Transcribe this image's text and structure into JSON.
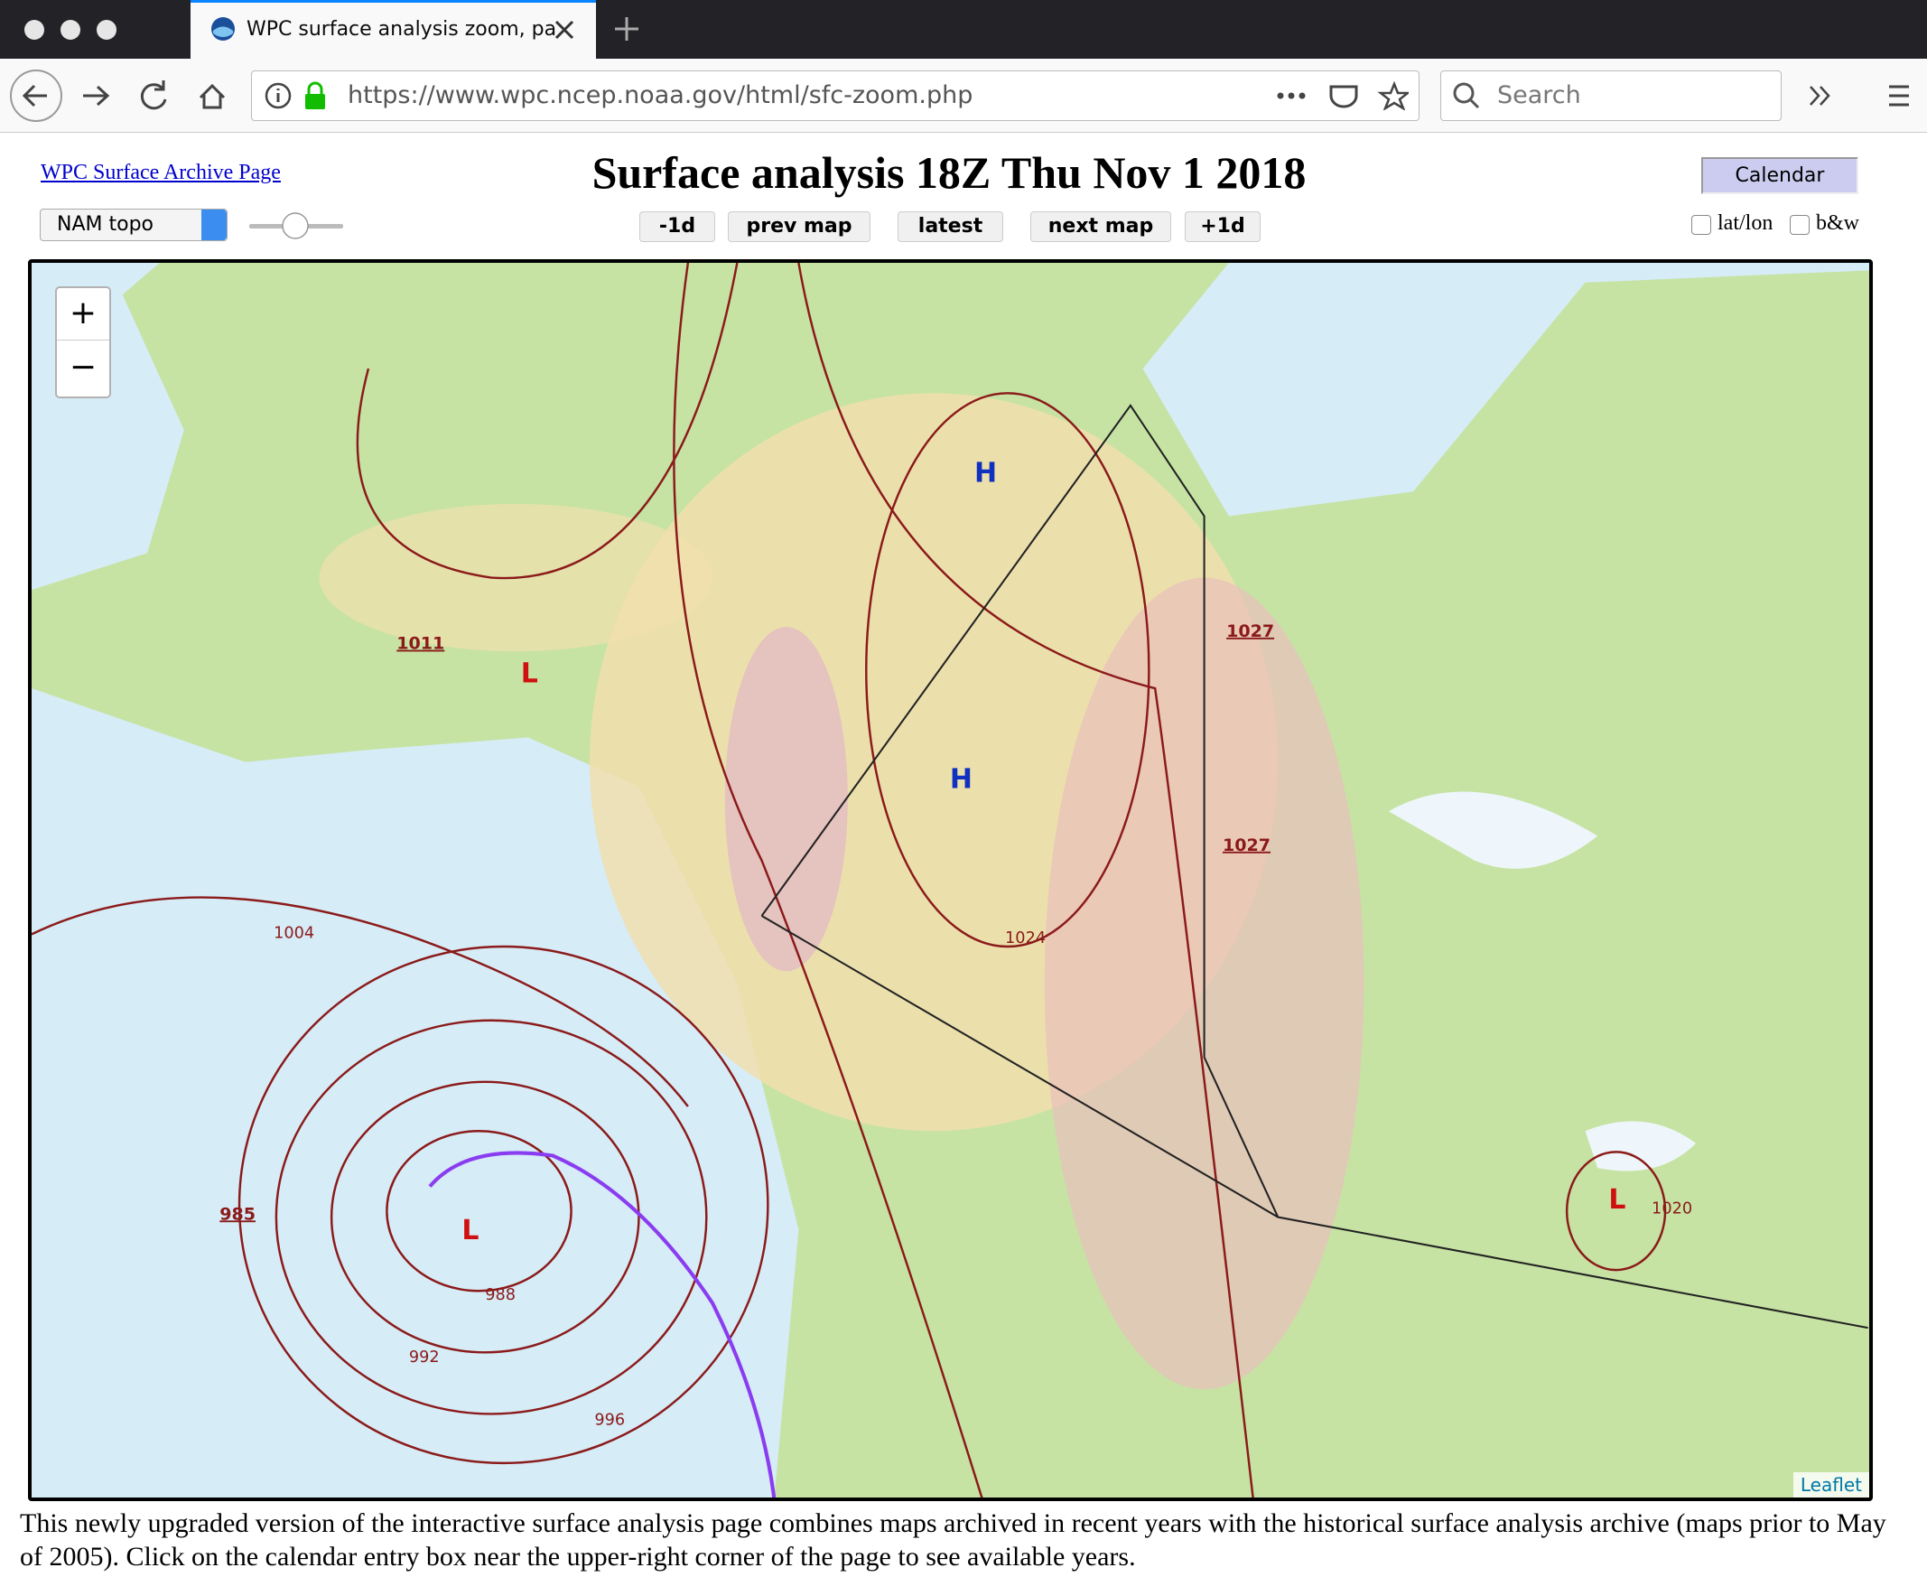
{
  "browser": {
    "tab_title": "WPC surface analysis zoom, pa",
    "url": "https://www.wpc.ncep.noaa.gov/html/sfc-zoom.php",
    "search_placeholder": "Search"
  },
  "header": {
    "archive_link": "WPC Surface Archive Page",
    "title": "Surface analysis 18Z Thu Nov 1 2018",
    "calendar": "Calendar"
  },
  "controls": {
    "map_select": "NAM topo",
    "buttons": [
      "-1d",
      "prev map",
      "latest",
      "next map",
      "+1d"
    ],
    "checkboxes": [
      "lat/lon",
      "b&w"
    ]
  },
  "map": {
    "zoom_in": "+",
    "zoom_out": "−",
    "attribution": "Leaflet",
    "centers": [
      "H",
      "H",
      "L",
      "L",
      "L"
    ],
    "isobars": [
      "1027",
      "1027",
      "1011",
      "1004",
      "985",
      "988",
      "992",
      "996",
      "1024",
      "1020"
    ]
  },
  "caption": "This newly upgraded version of the interactive surface analysis page combines maps archived in recent years with the historical surface analysis archive (maps prior to May of 2005). Click on the calendar entry box near the upper-right corner of the page to see available years."
}
